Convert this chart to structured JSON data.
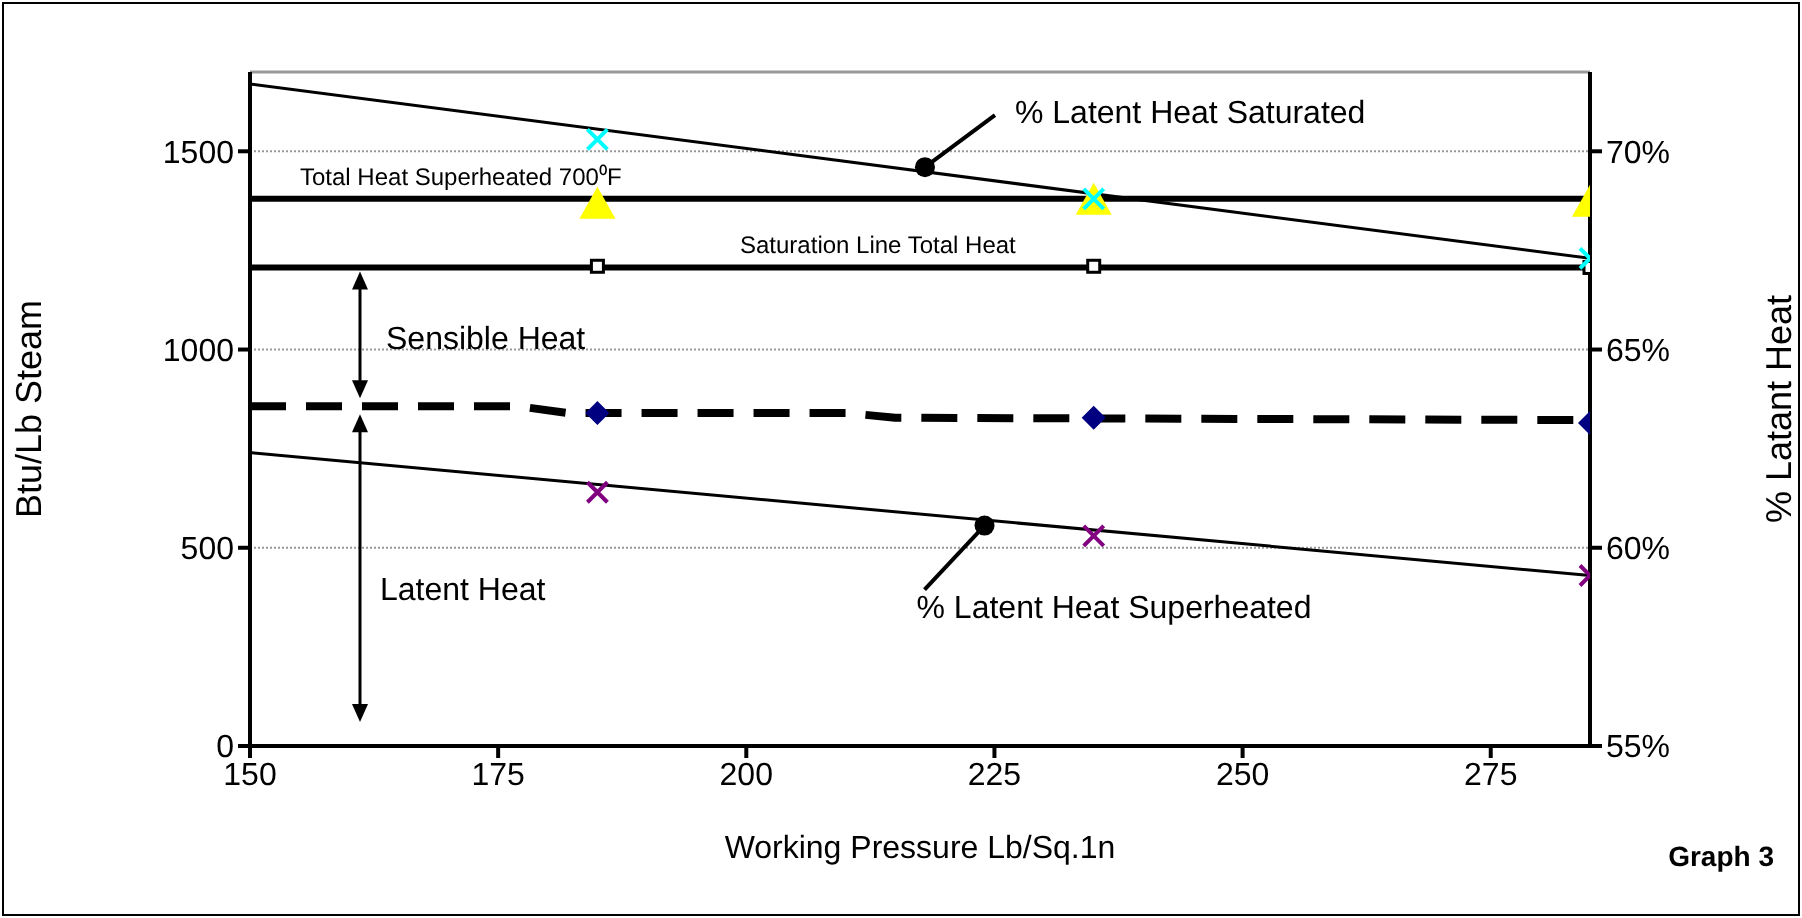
{
  "chart_data": {
    "type": "line",
    "xlabel": "Working Pressure Lb/Sq.1n",
    "ylabel": "Btu/Lb  Steam",
    "y2label": "% Latant Heat",
    "xlim": [
      150,
      285
    ],
    "xticks": [
      150,
      175,
      200,
      225,
      250,
      275
    ],
    "ylim": [
      0,
      1700
    ],
    "yticks": [
      0,
      500,
      1000,
      1500
    ],
    "y2lim": [
      55,
      72
    ],
    "y2ticks": [
      {
        "value": 55,
        "label": "55%"
      },
      {
        "value": 60,
        "label": "60%"
      },
      {
        "value": 65,
        "label": "65%"
      },
      {
        "value": 70,
        "label": "70%"
      }
    ],
    "grid": "y",
    "series": [
      {
        "name": "Total Heat Superheated 700⁰F",
        "color": "#000000",
        "x": [
          150,
          285
        ],
        "values": [
          1380,
          1380
        ]
      },
      {
        "type": "scatter",
        "color": "#ffff00",
        "marker": "triangle",
        "x": [
          185,
          235,
          285
        ],
        "values": [
          1365,
          1375,
          1370
        ]
      },
      {
        "name": "Saturation Line Total Heat",
        "color": "#000000",
        "x": [
          150,
          285
        ],
        "values": [
          1207,
          1207
        ]
      },
      {
        "type": "scatter",
        "color": "#000000",
        "marker": "square",
        "x": [
          185,
          235,
          285
        ],
        "values": [
          1210,
          1210,
          1207
        ]
      },
      {
        "color": "#000000",
        "line_style": "dashed",
        "x": [
          150,
          177,
          182,
          210,
          215,
          285
        ],
        "values": [
          857,
          857,
          840,
          840,
          828,
          822
        ]
      },
      {
        "type": "scatter",
        "color": "#000080",
        "marker": "diamond",
        "x": [
          185,
          235,
          285
        ],
        "values": [
          840,
          828,
          815
        ]
      },
      {
        "color": "#000000",
        "axis": "y2",
        "x": [
          150,
          285
        ],
        "values": [
          71.7,
          67.3
        ]
      },
      {
        "type": "scatter",
        "color": "#00ffff",
        "marker": "cross",
        "axis": "y2",
        "x": [
          185,
          235,
          285
        ],
        "values": [
          70.3,
          68.8,
          67.3
        ]
      },
      {
        "color": "#000000",
        "axis": "y2",
        "x": [
          150,
          285
        ],
        "values": [
          62.4,
          59.3
        ]
      },
      {
        "type": "scatter",
        "color": "#800080",
        "marker": "cross",
        "axis": "y2",
        "x": [
          185,
          235,
          285
        ],
        "values": [
          61.4,
          60.3,
          59.3
        ]
      }
    ],
    "annotations": [
      {
        "text": "% Latent Heat Saturated",
        "x": 218,
        "y": 1460
      },
      {
        "text": "% Latent Heat Superheated",
        "x": 224,
        "y": 556
      },
      "Sensible Heat",
      "Latent Heat",
      "Graph 3"
    ]
  }
}
